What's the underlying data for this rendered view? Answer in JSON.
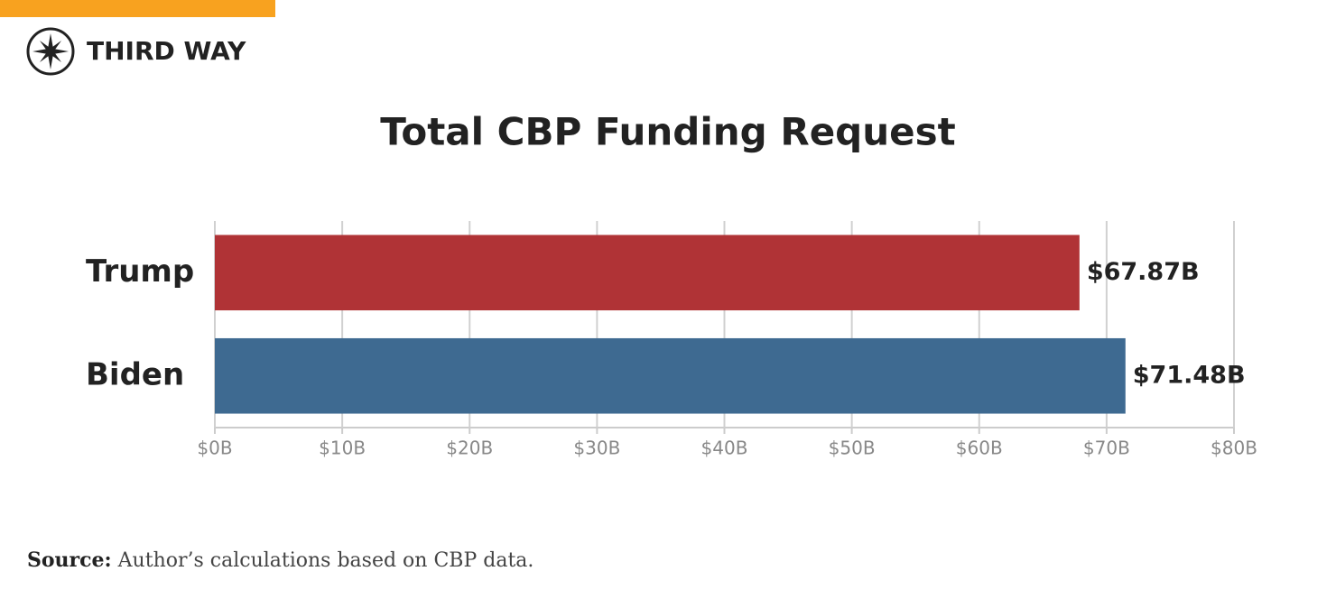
{
  "header": {
    "brand": "THIRD WAY"
  },
  "chart_data": {
    "type": "hbar",
    "title": "Total CBP Funding Request",
    "categories": [
      "Trump",
      "Biden"
    ],
    "values": [
      67.87,
      71.48
    ],
    "value_labels": [
      "$67.87B",
      "$71.48B"
    ],
    "colors": [
      "#b03336",
      "#3e6a91"
    ],
    "xlim": [
      0,
      80
    ],
    "xticks": [
      {
        "value": 0,
        "label": "$0B"
      },
      {
        "value": 10,
        "label": "$10B"
      },
      {
        "value": 20,
        "label": "$20B"
      },
      {
        "value": 30,
        "label": "$30B"
      },
      {
        "value": 40,
        "label": "$40B"
      },
      {
        "value": 50,
        "label": "$50B"
      },
      {
        "value": 60,
        "label": "$60B"
      },
      {
        "value": 70,
        "label": "$70B"
      },
      {
        "value": 80,
        "label": "$80B"
      }
    ],
    "grid": true
  },
  "footer": {
    "source_label": "Source:",
    "source_text": "Author’s calculations based on CBP data."
  }
}
